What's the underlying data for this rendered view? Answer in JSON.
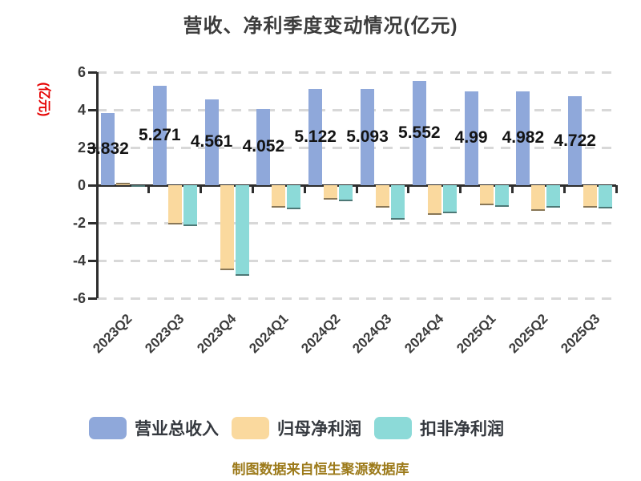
{
  "title": "营收、净利季度变动情况(亿元)",
  "y_axis_name": "(亿元)",
  "source_caption": "制图数据来自恒生聚源数据库",
  "colors": {
    "revenue_bar": "#8FA8DA",
    "net_profit_bar": "#FAD99E",
    "non_gaap_bar": "#8CDAD8",
    "axis": "#2e2e2e",
    "grid": "#d8d8d8",
    "y_axis_name_text": "#E60000",
    "caption_text": "#9C7A1A"
  },
  "chart_data": {
    "type": "bar",
    "title": "营收、净利季度变动情况(亿元)",
    "ylabel": "(亿元)",
    "ylim": [
      -6,
      6
    ],
    "y_ticks": [
      6,
      4,
      2,
      0,
      -2,
      -4,
      -6
    ],
    "grid": "horizontal dashed",
    "legend_position": "bottom",
    "categories": [
      "2023Q2",
      "2023Q3",
      "2023Q4",
      "2024Q1",
      "2024Q2",
      "2024Q3",
      "2024Q4",
      "2025Q1",
      "2025Q2",
      "2025Q3"
    ],
    "series": [
      {
        "name": "营业总收入",
        "color": "#8FA8DA",
        "values": [
          3.832,
          5.271,
          4.561,
          4.052,
          5.122,
          5.093,
          5.552,
          4.99,
          4.982,
          4.722
        ],
        "labels": [
          "3.832",
          "5.271",
          "4.561",
          "4.052",
          "5.122",
          "5.093",
          "5.552",
          "4.99",
          "4.982",
          "4.722"
        ]
      },
      {
        "name": "归母净利润",
        "color": "#FAD99E",
        "values": [
          0.13,
          -2.07,
          -4.53,
          -1.19,
          -0.76,
          -1.2,
          -1.58,
          -1.07,
          -1.36,
          -1.19
        ]
      },
      {
        "name": "扣非净利润",
        "color": "#8CDAD8",
        "values": [
          -0.1,
          -2.19,
          -4.81,
          -1.29,
          -0.83,
          -1.83,
          -1.5,
          -1.14,
          -1.21,
          -1.22
        ]
      }
    ]
  }
}
